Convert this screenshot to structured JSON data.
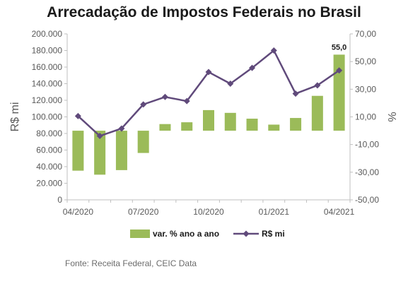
{
  "chart_data": {
    "type": "bar",
    "title": "Arrecadação de Impostos Federais no Brasil",
    "ylabel_left": "R$ mi",
    "ylabel_right": "%",
    "ylim_left": [
      0,
      200000
    ],
    "ylim_right": [
      -50,
      70
    ],
    "yticks_left": [
      "0",
      "20.000",
      "40.000",
      "60.000",
      "80.000",
      "100.000",
      "120.000",
      "140.000",
      "160.000",
      "180.000",
      "200.000"
    ],
    "yticks_right": [
      "-50,00",
      "-30,00",
      "-10,00",
      "10,00",
      "30,00",
      "50,00",
      "70,00"
    ],
    "xtick_labels": [
      "04/2020",
      "07/2020",
      "10/2020",
      "01/2021",
      "04/2021"
    ],
    "categories": [
      "04/2020",
      "05/2020",
      "06/2020",
      "07/2020",
      "08/2020",
      "09/2020",
      "10/2020",
      "11/2020",
      "12/2020",
      "01/2021",
      "02/2021",
      "03/2021",
      "04/2021"
    ],
    "series": [
      {
        "name": "var. % ano a ano",
        "type": "bar",
        "axis": "right",
        "color": "#9bbb59",
        "values": [
          -28.9,
          -31.8,
          -28.5,
          -16.1,
          4.8,
          6.1,
          14.9,
          12.9,
          8.7,
          4.4,
          9.2,
          25.2,
          55.0
        ]
      },
      {
        "name": "R$ mi",
        "type": "line",
        "axis": "left",
        "color": "#604a7b",
        "values": [
          101000,
          77000,
          86000,
          115000,
          124000,
          119000,
          154000,
          140000,
          159000,
          180000,
          128000,
          138000,
          156000
        ]
      }
    ],
    "annotations": [
      {
        "series": "var. % ano a ano",
        "index": 12,
        "text": "55,0"
      }
    ],
    "grid": false,
    "legend_position": "bottom"
  },
  "source_text": "Fonte: Receita Federal, CEIC Data"
}
